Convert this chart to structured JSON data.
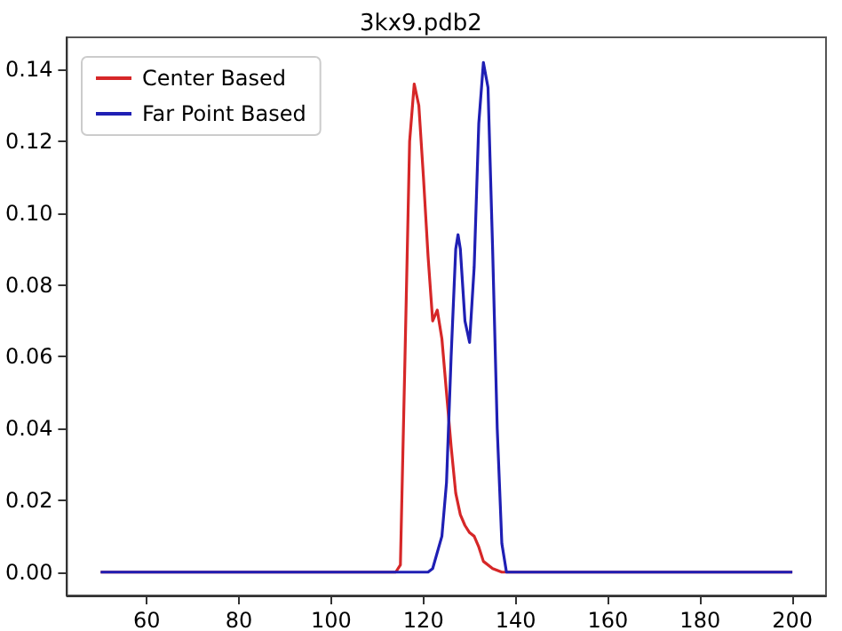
{
  "chart_data": {
    "type": "line",
    "title": "3kx9.pdb2",
    "legend": "top left",
    "grid": false,
    "marker": "none",
    "line_style": "solid",
    "xlim": [
      42.7,
      207.3
    ],
    "xticks": [
      60,
      80,
      100,
      120,
      140,
      160,
      180,
      200
    ],
    "ylim": [
      -0.0065,
      0.149
    ],
    "yticks": [
      {
        "value": 0,
        "label": "0.00"
      },
      {
        "value": 0.02,
        "label": "0.02"
      },
      {
        "value": 0.04,
        "label": "0.04"
      },
      {
        "value": 0.06,
        "label": "0.06"
      },
      {
        "value": 0.08,
        "label": "0.08"
      },
      {
        "value": 0.1,
        "label": "0.10"
      },
      {
        "value": 0.12,
        "label": "0.12"
      },
      {
        "value": 0.14,
        "label": "0.14"
      }
    ],
    "series": [
      {
        "name": "Center Based",
        "color": "#d62728",
        "x": [
          50,
          114,
          115,
          116,
          117,
          118,
          119,
          120,
          121,
          122,
          123,
          124,
          125,
          126,
          127,
          128,
          129,
          130,
          131,
          132,
          133,
          135,
          137,
          200
        ],
        "values": [
          0,
          0,
          0.002,
          0.06,
          0.12,
          0.136,
          0.13,
          0.11,
          0.088,
          0.07,
          0.073,
          0.065,
          0.05,
          0.035,
          0.022,
          0.016,
          0.013,
          0.011,
          0.01,
          0.007,
          0.003,
          0.001,
          0,
          0
        ]
      },
      {
        "name": "Far Point Based",
        "color": "#1f1fb4",
        "x": [
          50,
          121,
          122,
          124,
          125,
          126,
          127,
          127.5,
          128,
          129,
          130,
          131,
          132,
          133,
          134,
          135,
          136,
          137,
          138,
          200
        ],
        "values": [
          0,
          0,
          0.001,
          0.01,
          0.025,
          0.06,
          0.09,
          0.094,
          0.09,
          0.07,
          0.064,
          0.085,
          0.125,
          0.142,
          0.135,
          0.09,
          0.04,
          0.008,
          0,
          0
        ]
      }
    ]
  }
}
